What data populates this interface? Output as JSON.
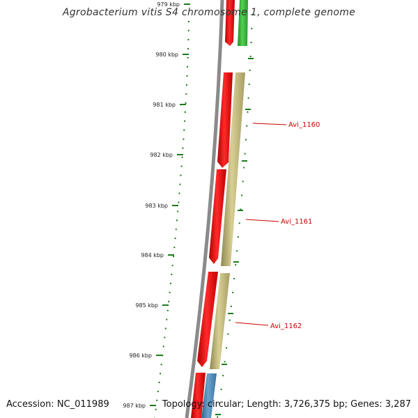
{
  "title": "Agrobacterium vitis S4 chromosome 1, complete genome",
  "accession": "Accession: NC_011989",
  "topology": "Topology: circular; Length: 3,726,375 bp; Genes: 3,287",
  "ticks": [
    "979 kbp",
    "980 kbp",
    "981 kbp",
    "982 kbp",
    "983 kbp",
    "984 kbp",
    "985 kbp",
    "986 kbp",
    "987 kbp"
  ],
  "gene_labels": [
    "Avi_1160",
    "Avi_1161",
    "Avi_1162"
  ],
  "colors": {
    "backbone": "#8a8a8a",
    "cds": "#ff1a1a",
    "gene_khaki": "#c8be7e",
    "gene_green": "#3fbf3f",
    "gene_blue": "#4a86b6",
    "tick": "#1a7a1a",
    "label": "#cc0000"
  }
}
